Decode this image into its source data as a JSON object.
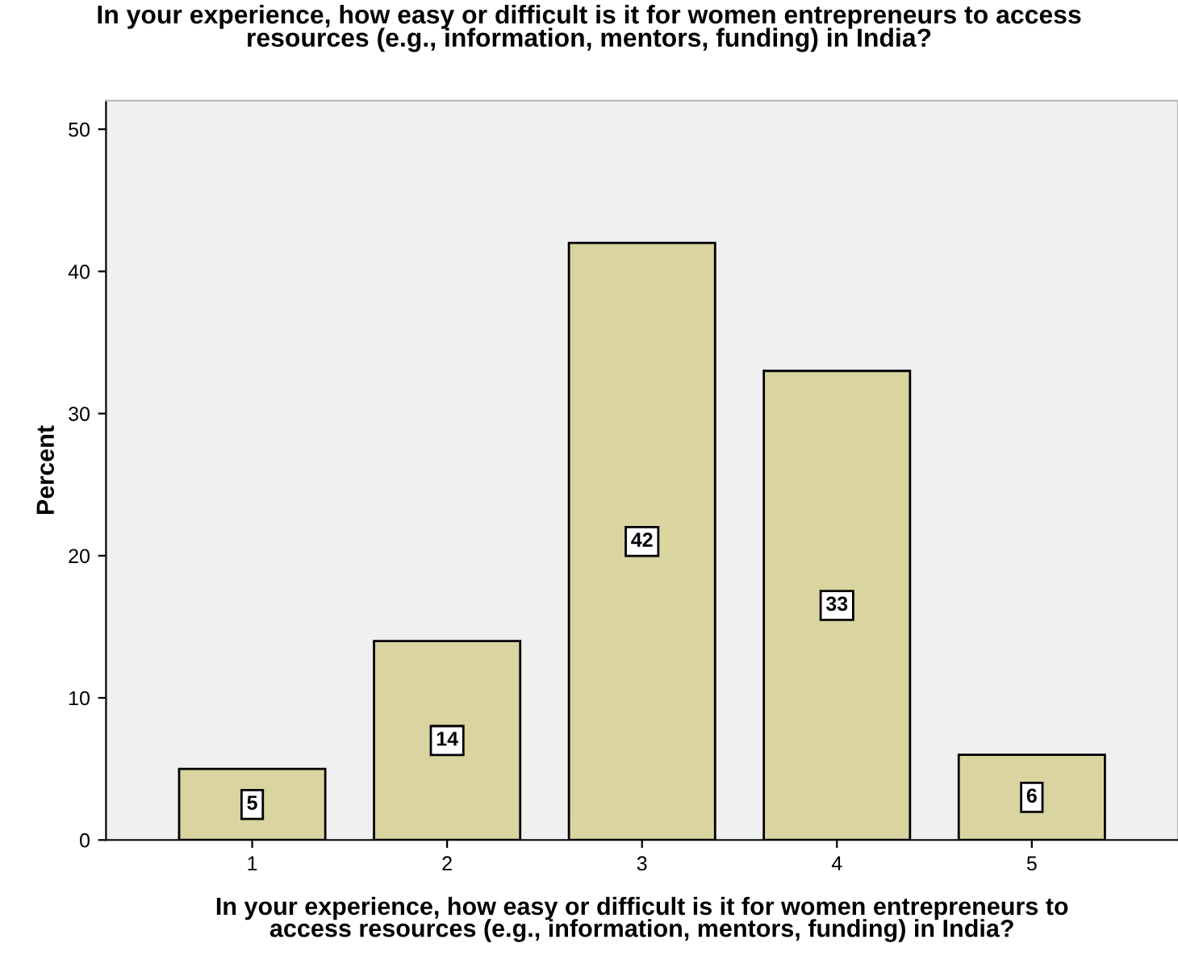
{
  "chart_data": {
    "type": "bar",
    "title": "In your experience, how easy or difficult is it for women entrepreneurs to access\nresources (e.g., information, mentors, funding) in India?",
    "xlabel": "In your experience, how easy or difficult is it for women entrepreneurs to\naccess resources (e.g., information, mentors, funding) in India?",
    "ylabel": "Percent",
    "categories": [
      "1",
      "2",
      "3",
      "4",
      "5"
    ],
    "values": [
      5,
      14,
      42,
      33,
      6
    ],
    "color": "#d9d4a0",
    "ylim": [
      0,
      52
    ],
    "yticks": [
      0,
      10,
      20,
      30,
      40,
      50
    ],
    "grid": false,
    "data_labels": true
  }
}
